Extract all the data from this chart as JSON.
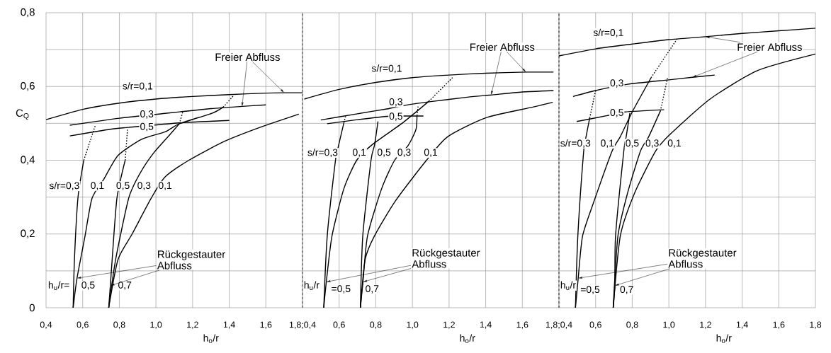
{
  "chart_data": [
    {
      "type": "line",
      "xlabel": "h$_{o}$/r",
      "ylabel": "C$_{Q}$",
      "xlim": [
        0.4,
        1.8
      ],
      "ylim": [
        0,
        0.8
      ],
      "grid": true,
      "xticks": [
        {
          "value": 0.4,
          "label": "0,4"
        },
        {
          "value": 0.6,
          "label": "0,6"
        },
        {
          "value": 0.8,
          "label": "0,8"
        },
        {
          "value": 1.0,
          "label": "1,0"
        },
        {
          "value": 1.2,
          "label": "1,2"
        },
        {
          "value": 1.4,
          "label": "1,4"
        },
        {
          "value": 1.6,
          "label": "1,6"
        },
        {
          "value": 1.8,
          "label": null
        }
      ],
      "yticks": [
        0,
        {
          "value": 0.1,
          "label": null
        },
        {
          "value": 0.2,
          "label": "0,2"
        },
        {
          "value": 0.3,
          "label": null
        },
        {
          "value": 0.4,
          "label": "0,4"
        },
        {
          "value": 0.5,
          "label": null
        },
        {
          "value": 0.6,
          "label": "0,6"
        },
        {
          "value": 0.7,
          "label": null
        },
        {
          "value": 0.8,
          "label": "0,8"
        }
      ],
      "ref_lines": [
        {
          "axis": "x",
          "value": 1.8,
          "line_style": "dashed",
          "color": "#000000"
        }
      ],
      "series": [
        {
          "color": "#000000",
          "line_style": "solid",
          "x": [
            0.4,
            0.6,
            0.8,
            1.0,
            1.2,
            1.4,
            1.6,
            1.7,
            1.8
          ],
          "values": [
            0.51,
            0.538,
            0.555,
            0.566,
            0.573,
            0.578,
            0.582,
            0.583,
            0.583
          ]
        },
        {
          "color": "#000000",
          "line_style": "solid",
          "x": [
            0.53,
            0.8,
            1.05,
            1.3,
            1.47,
            1.6
          ],
          "values": [
            0.495,
            0.514,
            0.527,
            0.54,
            0.546,
            0.55
          ]
        },
        {
          "color": "#000000",
          "line_style": "solid",
          "x": [
            0.53,
            0.75,
            0.85,
            1.15,
            1.4
          ],
          "values": [
            0.466,
            0.484,
            0.489,
            0.502,
            0.508
          ]
        },
        {
          "color": "#000000",
          "line_style": "solid",
          "x": [
            0.548,
            0.555,
            0.574,
            0.606
          ],
          "values": [
            0,
            0.131,
            0.297,
            0.4
          ]
        },
        {
          "color": "#000000",
          "line_style": "dotted",
          "x": [
            0.606,
            0.67
          ],
          "values": [
            0.4,
            0.496
          ]
        },
        {
          "color": "#000000",
          "line_style": "solid",
          "x": [
            0.548,
            0.569,
            0.613,
            0.651,
            0.716,
            0.793,
            0.922,
            1.05,
            1.128,
            1.309,
            1.367
          ],
          "values": [
            0,
            0.08,
            0.195,
            0.297,
            0.349,
            0.413,
            0.457,
            0.477,
            0.499,
            0.528,
            0.544
          ]
        },
        {
          "color": "#000000",
          "line_style": "dotted",
          "x": [
            1.367,
            1.425
          ],
          "values": [
            0.544,
            0.576
          ]
        },
        {
          "color": "#000000",
          "line_style": "solid",
          "x": [
            0.742,
            0.751,
            0.761,
            0.787,
            0.832
          ],
          "values": [
            0,
            0.06,
            0.131,
            0.297,
            0.4
          ]
        },
        {
          "color": "#000000",
          "line_style": "dotted",
          "x": [
            0.832,
            0.845
          ],
          "values": [
            0.4,
            0.486
          ]
        },
        {
          "color": "#000000",
          "line_style": "solid",
          "x": [
            0.742,
            0.78,
            0.851,
            0.909,
            0.986,
            1.077,
            1.128
          ],
          "values": [
            0,
            0.131,
            0.297,
            0.361,
            0.419,
            0.47,
            0.499
          ]
        },
        {
          "color": "#000000",
          "line_style": "dotted",
          "x": [
            1.128,
            1.148
          ],
          "values": [
            0.499,
            0.534
          ]
        },
        {
          "color": "#000000",
          "line_style": "solid",
          "x": [
            0.742,
            0.793,
            0.87,
            0.974,
            1.05,
            1.18,
            1.373,
            1.567,
            1.78
          ],
          "values": [
            0,
            0.131,
            0.2,
            0.297,
            0.355,
            0.4,
            0.451,
            0.489,
            0.525
          ]
        }
      ],
      "annotations": [
        "s/r=0,1",
        {
          "text": "0,3",
          "x": 0.95,
          "y": 0.524
        },
        {
          "text": "0,5",
          "x": 0.95,
          "y": 0.49
        },
        {
          "text": "Freier Abfluss",
          "x": 1.7,
          "y": 0.583
        },
        "s/r=0,3",
        {
          "text": "0,1",
          "x": 0.68,
          "y": 0.33
        },
        {
          "text": "0,5",
          "x": 0.82,
          "y": 0.33
        },
        {
          "text": "0,3",
          "x": 0.935,
          "y": 0.33
        },
        {
          "text": "0,1",
          "x": 1.05,
          "y": 0.33
        },
        {
          "text": "Rückgestauter Abfluss",
          "x": 0.569,
          "y": 0.08
        },
        {
          "text": "h$_{u}$/r=",
          "x": 0.47,
          "y": 0.06
        },
        {
          "text": "0,5",
          "x": 0.63,
          "y": 0.06
        },
        {
          "text": "0,7",
          "x": 0.83,
          "y": 0.06
        }
      ]
    },
    {
      "type": "line",
      "xlabel": "h$_{o}$/r",
      "xlim": [
        0.4,
        1.8
      ],
      "ylim": [
        0,
        0.8
      ],
      "grid": true,
      "tick_labels": "x",
      "xticks": [
        {
          "value": 0.4,
          "label": "1,8;0,4"
        },
        {
          "value": 0.6,
          "label": "0,6"
        },
        {
          "value": 0.8,
          "label": "0,8"
        },
        {
          "value": 1.0,
          "label": "1,0"
        },
        {
          "value": 1.2,
          "label": "1,2"
        },
        {
          "value": 1.4,
          "label": "1,4"
        },
        {
          "value": 1.6,
          "label": "1,6"
        },
        {
          "value": 1.8,
          "label": null
        }
      ],
      "yticks": [
        {
          "value": 0,
          "label": null
        },
        {
          "value": 0.1,
          "label": null
        },
        {
          "value": 0.2,
          "label": null
        },
        {
          "value": 0.3,
          "label": null
        },
        {
          "value": 0.4,
          "label": null
        },
        {
          "value": 0.5,
          "label": null
        },
        {
          "value": 0.6,
          "label": null
        },
        {
          "value": 0.7,
          "label": null
        },
        {
          "value": 0.8,
          "label": null
        }
      ],
      "series": [
        {
          "color": "#000000",
          "line_style": "solid",
          "x": [
            0.41,
            0.6,
            0.8,
            1.0,
            1.2,
            1.4,
            1.62,
            1.77
          ],
          "values": [
            0.566,
            0.592,
            0.611,
            0.624,
            0.631,
            0.636,
            0.639,
            0.639
          ]
        },
        {
          "color": "#000000",
          "line_style": "solid",
          "x": [
            0.5,
            0.7,
            0.86,
            0.96,
            1.1,
            1.3,
            1.43,
            1.6,
            1.77
          ],
          "values": [
            0.509,
            0.526,
            0.539,
            0.549,
            0.559,
            0.571,
            0.577,
            0.585,
            0.589
          ]
        },
        {
          "color": "#000000",
          "line_style": "solid",
          "x": [
            0.535,
            0.7,
            0.86,
            0.96,
            1.06
          ],
          "values": [
            0.499,
            0.51,
            0.519,
            0.52,
            0.52
          ]
        },
        {
          "color": "#000000",
          "line_style": "solid",
          "x": [
            0.516,
            0.535,
            0.58,
            0.593,
            0.626
          ],
          "values": [
            0,
            0.195,
            0.4,
            0.432,
            0.502
          ]
        },
        {
          "color": "#000000",
          "line_style": "dotted",
          "x": [
            0.626,
            0.636
          ],
          "values": [
            0.502,
            0.521
          ]
        },
        {
          "color": "#000000",
          "line_style": "solid",
          "x": [
            0.516,
            0.53,
            0.561,
            0.626,
            0.696,
            0.78,
            0.948,
            1.09
          ],
          "values": [
            0,
            0.07,
            0.195,
            0.323,
            0.4,
            0.442,
            0.502,
            0.56
          ]
        },
        {
          "color": "#000000",
          "line_style": "dotted",
          "x": [
            1.09,
            1.225
          ],
          "values": [
            0.56,
            0.627
          ]
        },
        {
          "color": "#000000",
          "line_style": "solid",
          "x": [
            0.716,
            0.729,
            0.774,
            0.793,
            0.812
          ],
          "values": [
            0,
            0.195,
            0.4,
            0.441,
            0.505
          ]
        },
        {
          "color": "#000000",
          "line_style": "solid",
          "x": [
            0.716,
            0.73,
            0.755,
            0.832,
            0.903,
            0.974,
            1.019,
            1.025
          ],
          "values": [
            0,
            0.07,
            0.195,
            0.323,
            0.4,
            0.438,
            0.483,
            0.521
          ]
        },
        {
          "color": "#000000",
          "line_style": "dotted",
          "x": [
            1.025,
            1.032
          ],
          "values": [
            0.521,
            0.55
          ]
        },
        {
          "color": "#000000",
          "line_style": "solid",
          "x": [
            0.716,
            0.742,
            0.793,
            0.909,
            1.077,
            1.193,
            1.4,
            1.657,
            1.766
          ],
          "values": [
            0,
            0.131,
            0.195,
            0.291,
            0.4,
            0.464,
            0.515,
            0.544,
            0.557
          ]
        }
      ],
      "annotations": [
        "s/r=0,1",
        {
          "text": "0,3",
          "x": 0.91,
          "y": 0.557
        },
        {
          "text": "0,5",
          "x": 0.91,
          "y": 0.518
        },
        {
          "text": "Freier Abfluss",
          "x": 1.62,
          "y": 0.639
        },
        "s/r=0,3",
        {
          "text": "0,1",
          "x": 0.71,
          "y": 0.42
        },
        {
          "text": "0,5",
          "x": 0.845,
          "y": 0.42
        },
        {
          "text": "0,3",
          "x": 0.955,
          "y": 0.42
        },
        {
          "text": "0,1",
          "x": 1.1,
          "y": 0.42
        },
        {
          "text": "Rückgestauter Abfluss",
          "x": 0.53,
          "y": 0.07
        },
        {
          "text": "h$_{u}$/r",
          "x": 0.45,
          "y": 0.06
        },
        {
          "text": "=0,5",
          "x": 0.61,
          "y": 0.05
        },
        {
          "text": "0,7",
          "x": 0.78,
          "y": 0.05
        }
      ]
    },
    {
      "type": "line",
      "xlabel": "h$_{o}$/r",
      "xlim": [
        0.4,
        1.8
      ],
      "ylim": [
        0,
        0.8
      ],
      "grid": true,
      "tick_labels": "x",
      "xticks": [
        {
          "value": 0.4,
          "label": "1,8;0,4"
        },
        {
          "value": 0.6,
          "label": "0,6"
        },
        {
          "value": 0.8,
          "label": "0,8"
        },
        {
          "value": 1.0,
          "label": "1,0"
        },
        {
          "value": 1.2,
          "label": "1,2"
        },
        {
          "value": 1.4,
          "label": "1,4"
        },
        {
          "value": 1.6,
          "label": "1,6"
        },
        {
          "value": 1.8,
          "label": "1,8"
        }
      ],
      "yticks": [
        {
          "value": 0,
          "label": null
        },
        {
          "value": 0.1,
          "label": null
        },
        {
          "value": 0.2,
          "label": null
        },
        {
          "value": 0.3,
          "label": null
        },
        {
          "value": 0.4,
          "label": null
        },
        {
          "value": 0.5,
          "label": null
        },
        {
          "value": 0.6,
          "label": null
        },
        {
          "value": 0.7,
          "label": null
        },
        {
          "value": 0.8,
          "label": null
        }
      ],
      "ref_lines": [
        {
          "axis": "x",
          "value": 0.4,
          "line_style": "dashed",
          "color": "#000000"
        }
      ],
      "series": [
        {
          "color": "#000000",
          "line_style": "solid",
          "x": [
            0.4,
            0.6,
            0.8,
            1.0,
            1.2,
            1.4,
            1.6,
            1.8
          ],
          "values": [
            0.683,
            0.702,
            0.715,
            0.727,
            0.735,
            0.744,
            0.751,
            0.758
          ]
        },
        {
          "color": "#000000",
          "line_style": "solid",
          "x": [
            0.477,
            0.6,
            0.774,
            1.0,
            1.128,
            1.25
          ],
          "values": [
            0.573,
            0.589,
            0.606,
            0.618,
            0.625,
            0.631
          ]
        },
        {
          "color": "#000000",
          "line_style": "solid",
          "x": [
            0.497,
            0.664,
            0.761,
            0.974
          ],
          "values": [
            0.505,
            0.521,
            0.531,
            0.537
          ]
        },
        {
          "color": "#000000",
          "line_style": "solid",
          "x": [
            0.49,
            0.503,
            0.535,
            0.548,
            0.568
          ],
          "values": [
            0,
            0.195,
            0.425,
            0.464,
            0.515
          ]
        },
        {
          "color": "#000000",
          "line_style": "dotted",
          "x": [
            0.568,
            0.6
          ],
          "values": [
            0.515,
            0.589
          ]
        },
        {
          "color": "#000000",
          "line_style": "solid",
          "x": [
            0.49,
            0.505,
            0.529,
            0.593,
            0.69,
            0.735,
            0.8,
            0.903
          ],
          "values": [
            0,
            0.08,
            0.195,
            0.291,
            0.425,
            0.464,
            0.531,
            0.624
          ]
        },
        {
          "color": "#000000",
          "line_style": "dotted",
          "x": [
            0.903,
            1.045
          ],
          "values": [
            0.624,
            0.729
          ]
        },
        {
          "color": "#000000",
          "line_style": "solid",
          "x": [
            0.696,
            0.705,
            0.709,
            0.754,
            0.767,
            0.787
          ],
          "values": [
            0,
            0.06,
            0.195,
            0.425,
            0.464,
            0.528
          ]
        },
        {
          "color": "#000000",
          "line_style": "solid",
          "x": [
            0.696,
            0.722,
            0.774,
            0.845,
            0.89,
            0.954
          ],
          "values": [
            0,
            0.195,
            0.31,
            0.425,
            0.464,
            0.534
          ]
        },
        {
          "color": "#000000",
          "line_style": "dotted",
          "x": [
            0.954,
            0.993
          ],
          "values": [
            0.534,
            0.624
          ]
        },
        {
          "color": "#000000",
          "line_style": "solid",
          "x": [
            0.696,
            0.735,
            0.812,
            0.928,
            1.006,
            1.225,
            1.483,
            1.8
          ],
          "values": [
            0,
            0.195,
            0.31,
            0.425,
            0.47,
            0.566,
            0.643,
            0.688
          ]
        }
      ],
      "annotations": [
        "s/r=0,1",
        {
          "text": "0,3",
          "x": 0.716,
          "y": 0.608
        },
        {
          "text": "0,5",
          "x": 0.716,
          "y": 0.528
        },
        {
          "text": "Freier Abfluss",
          "x": 1.2,
          "y": 0.735
        },
        "s/r=0,3",
        {
          "text": "0,1",
          "x": 0.664,
          "y": 0.445
        },
        {
          "text": "0,5",
          "x": 0.8,
          "y": 0.445
        },
        {
          "text": "0,3",
          "x": 0.909,
          "y": 0.445
        },
        {
          "text": "0,1",
          "x": 1.03,
          "y": 0.445
        },
        {
          "text": "Rückgestauter Abfluss",
          "x": 0.505,
          "y": 0.08
        },
        {
          "text": "h$_{u}$/r",
          "x": 0.45,
          "y": 0.06
        },
        {
          "text": "=0,5",
          "x": 0.57,
          "y": 0.048
        },
        {
          "text": "0,7",
          "x": 0.77,
          "y": 0.048
        }
      ]
    }
  ]
}
